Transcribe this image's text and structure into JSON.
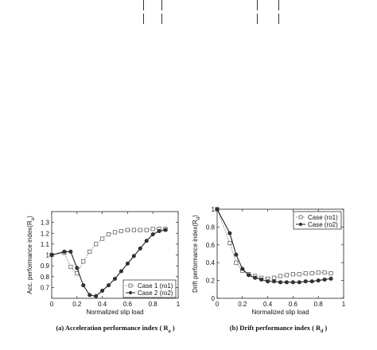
{
  "chart_data": [
    {
      "type": "line",
      "caption": "(a) Acceleration performance index ( R",
      "caption_sub": "a",
      "caption_end": " )",
      "xlabel": "Normalized slip load",
      "ylabel": "Acc. performance index(R",
      "ylabel_sub": "a",
      "ylabel_end": ")",
      "xlim": [
        0,
        1
      ],
      "ylim": [
        0.6,
        1.4
      ],
      "xticks": [
        "0",
        "0.2",
        "0.4",
        "0.6",
        "0.8",
        "1"
      ],
      "yticks": [
        "0.7",
        "0.8",
        "0.9",
        "1",
        "1.1",
        "1.2",
        "1.3"
      ],
      "legend_position": "bottom-right",
      "grid": false,
      "series": [
        {
          "name": "Case 1 (ro1)",
          "style": "dotted-square",
          "x": [
            0,
            0.1,
            0.15,
            0.2,
            0.25,
            0.3,
            0.35,
            0.4,
            0.45,
            0.5,
            0.55,
            0.6,
            0.65,
            0.7,
            0.75,
            0.8,
            0.85,
            0.9
          ],
          "y": [
            1.0,
            1.02,
            0.89,
            0.83,
            0.94,
            1.03,
            1.1,
            1.15,
            1.19,
            1.21,
            1.22,
            1.23,
            1.23,
            1.23,
            1.23,
            1.24,
            1.24,
            1.24
          ]
        },
        {
          "name": "Case 2 (ro2)",
          "style": "solid-circle",
          "x": [
            0,
            0.1,
            0.15,
            0.2,
            0.25,
            0.3,
            0.35,
            0.4,
            0.45,
            0.5,
            0.55,
            0.6,
            0.65,
            0.7,
            0.75,
            0.8,
            0.85,
            0.9
          ],
          "y": [
            1.0,
            1.03,
            1.03,
            0.88,
            0.72,
            0.63,
            0.62,
            0.67,
            0.72,
            0.78,
            0.85,
            0.92,
            0.99,
            1.06,
            1.13,
            1.19,
            1.22,
            1.23
          ]
        }
      ]
    },
    {
      "type": "line",
      "caption": "(b) Drift performance index ( R",
      "caption_sub": "d",
      "caption_end": " )",
      "xlabel": "Normalized slip load",
      "ylabel": "Drift performance index(R",
      "ylabel_sub": "d",
      "ylabel_end": ")",
      "xlim": [
        0,
        1
      ],
      "ylim": [
        0,
        1
      ],
      "xticks": [
        "0",
        "0.2",
        "0.4",
        "0.6",
        "0.8",
        "1"
      ],
      "yticks": [
        "0",
        "0.2",
        "0.4",
        "0.6",
        "0.8",
        "1"
      ],
      "legend_position": "top-right",
      "grid": false,
      "series": [
        {
          "name": "Case (ro1)",
          "style": "dotted-square",
          "x": [
            0,
            0.1,
            0.15,
            0.2,
            0.25,
            0.3,
            0.35,
            0.4,
            0.45,
            0.5,
            0.55,
            0.6,
            0.65,
            0.7,
            0.75,
            0.8,
            0.85,
            0.9
          ],
          "y": [
            1.0,
            0.62,
            0.4,
            0.31,
            0.27,
            0.25,
            0.23,
            0.22,
            0.23,
            0.25,
            0.26,
            0.27,
            0.27,
            0.28,
            0.28,
            0.29,
            0.29,
            0.28
          ]
        },
        {
          "name": "Case (ro2)",
          "style": "solid-circle",
          "x": [
            0,
            0.1,
            0.15,
            0.2,
            0.25,
            0.3,
            0.35,
            0.4,
            0.45,
            0.5,
            0.55,
            0.6,
            0.65,
            0.7,
            0.75,
            0.8,
            0.85,
            0.9
          ],
          "y": [
            1.0,
            0.73,
            0.49,
            0.33,
            0.26,
            0.23,
            0.21,
            0.19,
            0.19,
            0.18,
            0.18,
            0.18,
            0.18,
            0.19,
            0.19,
            0.2,
            0.21,
            0.22
          ]
        }
      ]
    }
  ]
}
